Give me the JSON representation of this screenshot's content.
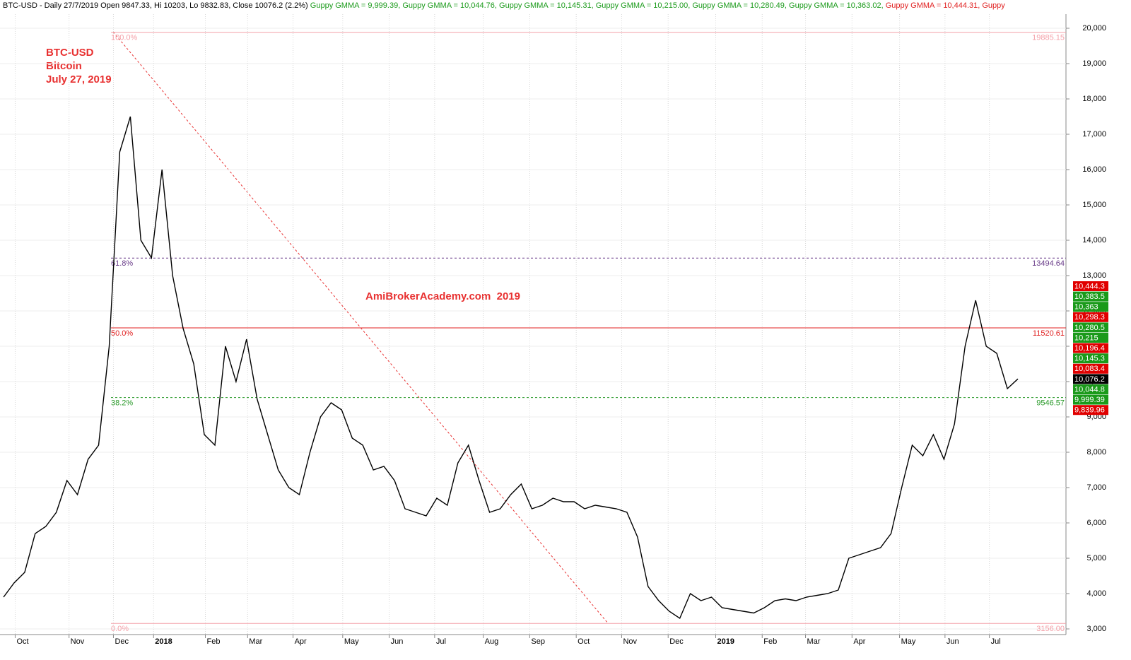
{
  "chart_data": {
    "type": "line",
    "header": [
      {
        "text": "BTC-USD - Daily 27/7/2019 Open 9847.33, Hi 10203, Lo 9832.83, Close 10076.2 (2.2%)",
        "color": "#000000"
      },
      {
        "text": "Guppy GMMA = 9,999.39,",
        "color": "#1a9a1a"
      },
      {
        "text": "Guppy GMMA = 10,044.76,",
        "color": "#1a9a1a"
      },
      {
        "text": "Guppy GMMA = 10,145.31,",
        "color": "#1a9a1a"
      },
      {
        "text": "Guppy GMMA = 10,215.00,",
        "color": "#1a9a1a"
      },
      {
        "text": "Guppy GMMA = 10,280.49,",
        "color": "#1a9a1a"
      },
      {
        "text": "Guppy GMMA = 10,363.02,",
        "color": "#1a9a1a"
      },
      {
        "text": "Guppy GMMA = 10,444.31,",
        "color": "#e02020"
      },
      {
        "text": "Guppy",
        "color": "#e02020"
      }
    ],
    "annotations": [
      "BTC-USD",
      "Bitcoin",
      "July 27, 2019"
    ],
    "watermark": "AmiBrokerAcademy.com  2019",
    "series": [
      {
        "name": "BTC-USD",
        "color": "#000000",
        "values": [
          3900,
          4300,
          4600,
          5700,
          5900,
          6300,
          7200,
          6800,
          7800,
          8200,
          11000,
          16500,
          17500,
          14000,
          13500,
          16000,
          13000,
          11500,
          10500,
          8500,
          8200,
          11000,
          10000,
          11200,
          9500,
          8500,
          7500,
          7000,
          6800,
          8000,
          9000,
          9400,
          9200,
          8400,
          8200,
          7500,
          7600,
          7200,
          6400,
          6300,
          6200,
          6700,
          6500,
          7700,
          8200,
          7200,
          6300,
          6400,
          6800,
          7100,
          6400,
          6500,
          6700,
          6600,
          6600,
          6400,
          6500,
          6450,
          6400,
          6300,
          5600,
          4200,
          3800,
          3500,
          3300,
          4000,
          3800,
          3900,
          3600,
          3550,
          3500,
          3450,
          3600,
          3800,
          3850,
          3800,
          3900,
          3950,
          4000,
          4100,
          5000,
          5100,
          5200,
          5300,
          5700,
          7000,
          8200,
          7900,
          8500,
          7800,
          8800,
          11000,
          12300,
          11000,
          10800,
          9800,
          10076.2
        ]
      }
    ],
    "ylim": [
      3000,
      20000
    ],
    "yticks": [
      {
        "value": 3000,
        "label": "3,000"
      },
      {
        "value": 4000,
        "label": "4,000"
      },
      {
        "value": 5000,
        "label": "5,000"
      },
      {
        "value": 6000,
        "label": "6,000"
      },
      {
        "value": 7000,
        "label": "7,000"
      },
      {
        "value": 8000,
        "label": "8,000"
      },
      {
        "value": 9000,
        "label": "9,000"
      },
      {
        "value": 10000,
        "label": "10,000"
      },
      {
        "value": 11000,
        "label": "11,000"
      },
      {
        "value": 12000,
        "label": "12,000"
      },
      {
        "value": 13000,
        "label": "13,000"
      },
      {
        "value": 14000,
        "label": "14,000"
      },
      {
        "value": 15000,
        "label": "15,000"
      },
      {
        "value": 16000,
        "label": "16,000"
      },
      {
        "value": 17000,
        "label": "17,000"
      },
      {
        "value": 18000,
        "label": "18,000"
      },
      {
        "value": 19000,
        "label": "19,000"
      },
      {
        "value": 20000,
        "label": "20,000"
      }
    ],
    "xticks": [
      {
        "value": 1.1,
        "label": "Oct"
      },
      {
        "value": 6.2,
        "label": "Nov"
      },
      {
        "value": 10.4,
        "label": "Dec"
      },
      {
        "value": 14.2,
        "label": "2018"
      },
      {
        "value": 19.1,
        "label": "Feb"
      },
      {
        "value": 23.1,
        "label": "Mar"
      },
      {
        "value": 27.4,
        "label": "Apr"
      },
      {
        "value": 32.1,
        "label": "May"
      },
      {
        "value": 36.5,
        "label": "Jun"
      },
      {
        "value": 40.8,
        "label": "Jul"
      },
      {
        "value": 45.4,
        "label": "Aug"
      },
      {
        "value": 49.8,
        "label": "Sep"
      },
      {
        "value": 54.2,
        "label": "Oct"
      },
      {
        "value": 58.5,
        "label": "Nov"
      },
      {
        "value": 62.9,
        "label": "Dec"
      },
      {
        "value": 67.4,
        "label": "2019"
      },
      {
        "value": 71.8,
        "label": "Feb"
      },
      {
        "value": 75.9,
        "label": "Mar"
      },
      {
        "value": 80.3,
        "label": "Apr"
      },
      {
        "value": 84.8,
        "label": "May"
      },
      {
        "value": 89.1,
        "label": "Jun"
      },
      {
        "value": 93.3,
        "label": "Jul"
      }
    ],
    "grid": true,
    "fib_levels": [
      {
        "pct": "100.0%",
        "value": 19885.15,
        "label": "19885.15",
        "color": "#f4a0a8",
        "dashed": false
      },
      {
        "pct": "61.8%",
        "value": 13494.64,
        "label": "13494.64",
        "color": "#6a3d8a",
        "dashed": true
      },
      {
        "pct": "50.0%",
        "value": 11520.61,
        "label": "11520.61",
        "color": "#e02020",
        "dashed": false
      },
      {
        "pct": "38.2%",
        "value": 9546.57,
        "label": "9546.57",
        "color": "#2a9a2a",
        "dashed": true
      },
      {
        "pct": "0.0%",
        "value": 3156,
        "label": "3156.00",
        "color": "#f4a0a8",
        "dashed": false
      }
    ],
    "price_tags": [
      {
        "value": 10444.3,
        "label": "10,444.3",
        "color": "#e00000"
      },
      {
        "value": 10383.5,
        "label": "10,383.5",
        "color": "#1a9a1a"
      },
      {
        "value": 10363,
        "label": "10,363",
        "color": "#1a9a1a"
      },
      {
        "value": 10298.3,
        "label": "10,298.3",
        "color": "#e00000"
      },
      {
        "value": 10280.5,
        "label": "10,280.5",
        "color": "#1a9a1a"
      },
      {
        "value": 10215,
        "label": "10,215",
        "color": "#1a9a1a"
      },
      {
        "value": 10196.4,
        "label": "10,196.4",
        "color": "#e00000"
      },
      {
        "value": 10145.3,
        "label": "10,145.3",
        "color": "#1a9a1a"
      },
      {
        "value": 10083.4,
        "label": "10,083.4",
        "color": "#e00000"
      },
      {
        "value": 10076.2,
        "label": "10,076.2",
        "color": "#000000"
      },
      {
        "value": 10044.8,
        "label": "10,044.8",
        "color": "#1a9a1a"
      },
      {
        "value": 9999.39,
        "label": "9,999.39",
        "color": "#1a9a1a"
      },
      {
        "value": 9839.96,
        "label": "9,839.96",
        "color": "#e00000"
      }
    ]
  }
}
